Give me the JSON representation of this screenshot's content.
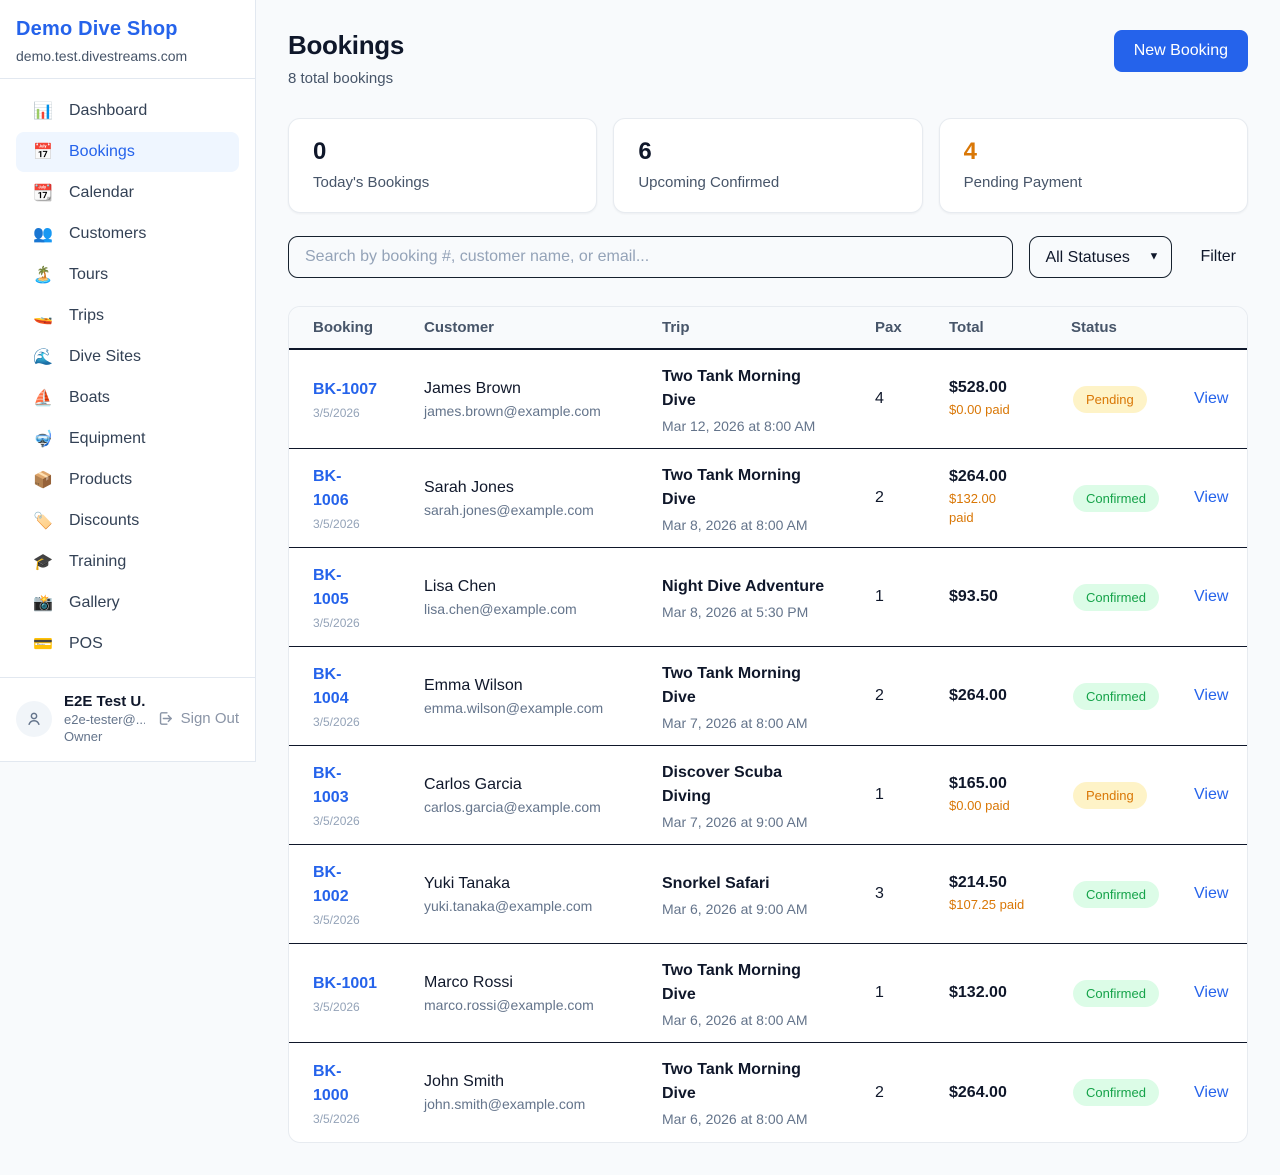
{
  "sidebar": {
    "brand": {
      "name": "Demo Dive Shop",
      "domain": "demo.test.divestreams.com"
    },
    "items": [
      {
        "icon": "📊",
        "label": "Dashboard",
        "active": false
      },
      {
        "icon": "📅",
        "label": "Bookings",
        "active": true
      },
      {
        "icon": "📆",
        "label": "Calendar",
        "active": false
      },
      {
        "icon": "👥",
        "label": "Customers",
        "active": false
      },
      {
        "icon": "🏝️",
        "label": "Tours",
        "active": false
      },
      {
        "icon": "🚤",
        "label": "Trips",
        "active": false
      },
      {
        "icon": "🌊",
        "label": "Dive Sites",
        "active": false
      },
      {
        "icon": "⛵",
        "label": "Boats",
        "active": false
      },
      {
        "icon": "🤿",
        "label": "Equipment",
        "active": false
      },
      {
        "icon": "📦",
        "label": "Products",
        "active": false
      },
      {
        "icon": "🏷️",
        "label": "Discounts",
        "active": false
      },
      {
        "icon": "🎓",
        "label": "Training",
        "active": false
      },
      {
        "icon": "📸",
        "label": "Gallery",
        "active": false
      },
      {
        "icon": "💳",
        "label": "POS",
        "active": false
      }
    ],
    "user": {
      "name": "E2E Test U...",
      "email": "e2e-tester@...",
      "role": "Owner",
      "signout_label": "Sign Out"
    }
  },
  "header": {
    "title": "Bookings",
    "subtitle": "8 total bookings",
    "new_booking_label": "New Booking"
  },
  "stats": [
    {
      "value": "0",
      "label": "Today's Bookings",
      "value_color": "#0f172a"
    },
    {
      "value": "6",
      "label": "Upcoming Confirmed",
      "value_color": "#0f172a"
    },
    {
      "value": "4",
      "label": "Pending Payment",
      "value_color": "#d97706"
    }
  ],
  "controls": {
    "search_placeholder": "Search by booking #, customer name, or email...",
    "status_selected": "All Statuses",
    "filter_label": "Filter"
  },
  "table": {
    "headers": [
      "Booking",
      "Customer",
      "Trip",
      "Pax",
      "Total",
      "Status"
    ],
    "view_label": "View",
    "rows": [
      {
        "id": "BK-1007",
        "id_wrapped": false,
        "date": "3/5/2026",
        "customer": "James Brown",
        "email": "james.brown@example.com",
        "trip": "Two Tank Morning Dive",
        "trip_datetime": "Mar 12, 2026 at 8:00 AM",
        "pax": "4",
        "total": "$528.00",
        "paid": "$0.00 paid",
        "paid_wrapped": false,
        "status": "Pending"
      },
      {
        "id": "BK-1006",
        "id_wrapped": true,
        "date": "3/5/2026",
        "customer": "Sarah Jones",
        "email": "sarah.jones@example.com",
        "trip": "Two Tank Morning Dive",
        "trip_datetime": "Mar 8, 2026 at 8:00 AM",
        "pax": "2",
        "total": "$264.00",
        "paid": "$132.00 paid",
        "paid_wrapped": true,
        "status": "Confirmed"
      },
      {
        "id": "BK-1005",
        "id_wrapped": true,
        "date": "3/5/2026",
        "customer": "Lisa Chen",
        "email": "lisa.chen@example.com",
        "trip": "Night Dive Adventure",
        "trip_datetime": "Mar 8, 2026 at 5:30 PM",
        "pax": "1",
        "total": "$93.50",
        "paid": null,
        "paid_wrapped": false,
        "status": "Confirmed"
      },
      {
        "id": "BK-1004",
        "id_wrapped": true,
        "date": "3/5/2026",
        "customer": "Emma Wilson",
        "email": "emma.wilson@example.com",
        "trip": "Two Tank Morning Dive",
        "trip_datetime": "Mar 7, 2026 at 8:00 AM",
        "pax": "2",
        "total": "$264.00",
        "paid": null,
        "paid_wrapped": false,
        "status": "Confirmed"
      },
      {
        "id": "BK-1003",
        "id_wrapped": true,
        "date": "3/5/2026",
        "customer": "Carlos Garcia",
        "email": "carlos.garcia@example.com",
        "trip": "Discover Scuba Diving",
        "trip_datetime": "Mar 7, 2026 at 9:00 AM",
        "pax": "1",
        "total": "$165.00",
        "paid": "$0.00 paid",
        "paid_wrapped": false,
        "status": "Pending"
      },
      {
        "id": "BK-1002",
        "id_wrapped": true,
        "date": "3/5/2026",
        "customer": "Yuki Tanaka",
        "email": "yuki.tanaka@example.com",
        "trip": "Snorkel Safari",
        "trip_datetime": "Mar 6, 2026 at 9:00 AM",
        "pax": "3",
        "total": "$214.50",
        "paid": "$107.25 paid",
        "paid_wrapped": false,
        "status": "Confirmed"
      },
      {
        "id": "BK-1001",
        "id_wrapped": false,
        "date": "3/5/2026",
        "customer": "Marco Rossi",
        "email": "marco.rossi@example.com",
        "trip": "Two Tank Morning Dive",
        "trip_datetime": "Mar 6, 2026 at 8:00 AM",
        "pax": "1",
        "total": "$132.00",
        "paid": null,
        "paid_wrapped": false,
        "status": "Confirmed"
      },
      {
        "id": "BK-1000",
        "id_wrapped": true,
        "date": "3/5/2026",
        "customer": "John Smith",
        "email": "john.smith@example.com",
        "trip": "Two Tank Morning Dive",
        "trip_datetime": "Mar 6, 2026 at 8:00 AM",
        "pax": "2",
        "total": "$264.00",
        "paid": null,
        "paid_wrapped": false,
        "status": "Confirmed"
      }
    ]
  },
  "colors": {
    "accent": "#2563eb",
    "paid_amount": "#d97706",
    "pending_number": "#d97706",
    "status": {
      "Pending": {
        "bg": "#fef3c7",
        "text": "#d97706"
      },
      "Confirmed": {
        "bg": "#dcfce7",
        "text": "#16a34a"
      }
    }
  }
}
